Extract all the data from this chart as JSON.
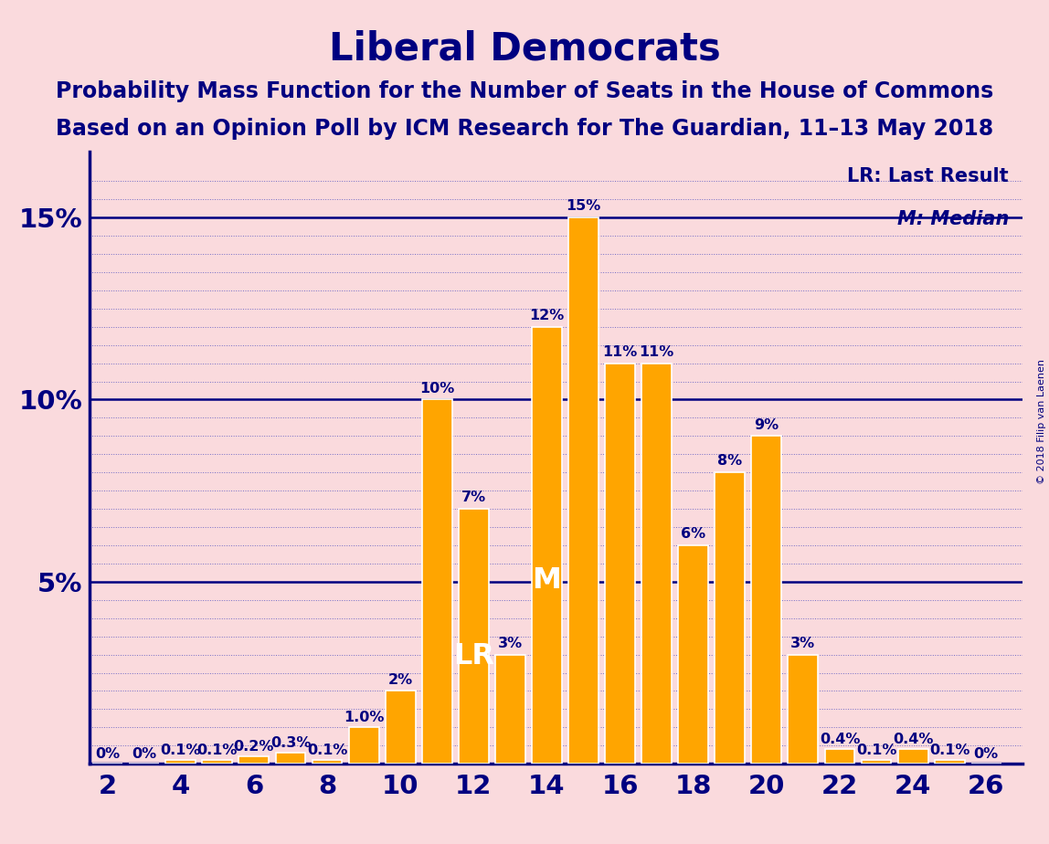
{
  "title": "Liberal Democrats",
  "subtitle1": "Probability Mass Function for the Number of Seats in the House of Commons",
  "subtitle2": "Based on an Opinion Poll by ICM Research for The Guardian, 11–13 May 2018",
  "copyright": "© 2018 Filip van Laenen",
  "legend_lr": "LR: Last Result",
  "legend_m": "M: Median",
  "background_color": "#FADADD",
  "bar_color": "#FFA500",
  "bar_edge_color": "#FFFFFF",
  "axis_color": "#000080",
  "text_color": "#000080",
  "grid_color": "#5050C0",
  "categories": [
    2,
    3,
    4,
    5,
    6,
    7,
    8,
    9,
    10,
    11,
    12,
    13,
    14,
    15,
    16,
    17,
    18,
    19,
    20,
    21,
    22,
    23,
    24,
    25,
    26
  ],
  "values": [
    0.0,
    0.0,
    0.1,
    0.1,
    0.2,
    0.3,
    0.1,
    1.0,
    2.0,
    10.0,
    7.0,
    3.0,
    12.0,
    15.0,
    11.0,
    11.0,
    6.0,
    8.0,
    9.0,
    3.0,
    0.4,
    0.1,
    0.4,
    0.1,
    0.0
  ],
  "labels": [
    "0%",
    "0%",
    "0.1%",
    "0.1%",
    "0.2%",
    "0.3%",
    "0.1%",
    "1.0%",
    "2%",
    "10%",
    "7%",
    "3%",
    "12%",
    "15%",
    "11%",
    "11%",
    "6%",
    "8%",
    "9%",
    "3%",
    "0.4%",
    "0.1%",
    "0.4%",
    "0.1%",
    "0%"
  ],
  "lr_seat": 12,
  "median_seat": 14,
  "xlim": [
    1.5,
    27.0
  ],
  "ylim": [
    0,
    16.8
  ],
  "xticks": [
    2,
    4,
    6,
    8,
    10,
    12,
    14,
    16,
    18,
    20,
    22,
    24,
    26
  ],
  "yticks": [
    5,
    10,
    15
  ],
  "ytick_labels": [
    "5%",
    "10%",
    "15%"
  ],
  "title_fontsize": 30,
  "subtitle_fontsize": 17,
  "label_fontsize": 11.5,
  "axis_label_fontsize": 21
}
